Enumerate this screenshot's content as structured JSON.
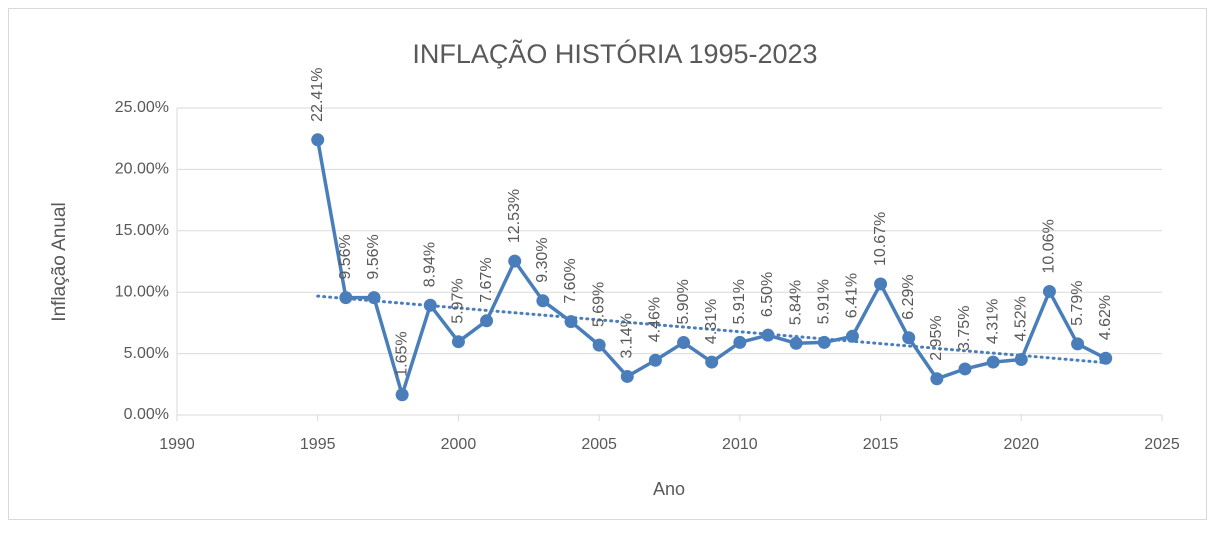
{
  "chart_data": {
    "type": "line",
    "title": "INFLAÇÃO HISTÓRIA 1995-2023",
    "x_label": "Ano",
    "y_label": "Inflação Anual",
    "x": [
      1995,
      1996,
      1997,
      1998,
      1999,
      2000,
      2001,
      2002,
      2003,
      2004,
      2005,
      2006,
      2007,
      2008,
      2009,
      2010,
      2011,
      2012,
      2013,
      2014,
      2015,
      2016,
      2017,
      2018,
      2019,
      2020,
      2021,
      2022,
      2023
    ],
    "values": [
      22.41,
      9.56,
      9.56,
      1.65,
      8.94,
      5.97,
      7.67,
      12.53,
      9.3,
      7.6,
      5.69,
      3.14,
      4.46,
      5.9,
      4.31,
      5.91,
      6.5,
      5.84,
      5.91,
      6.41,
      10.67,
      6.29,
      2.95,
      3.75,
      4.31,
      4.52,
      10.06,
      5.79,
      4.62
    ],
    "value_labels": [
      "22.41%",
      "9.56%",
      "9.56%",
      "1.65%",
      "8.94%",
      "5.97%",
      "7.67%",
      "12.53%",
      "9.30%",
      "7.60%",
      "5.69%",
      "3.14%",
      "4.46%",
      "5.90%",
      "4.31%",
      "5.91%",
      "6.50%",
      "5.84%",
      "5.91%",
      "6.41%",
      "10.67%",
      "6.29%",
      "2.95%",
      "3.75%",
      "4.31%",
      "4.52%",
      "10.06%",
      "5.79%",
      "4.62%"
    ],
    "color": "#4a7ebb",
    "trendline": "linear",
    "xlim": [
      1990,
      2025
    ],
    "xticks": [
      1990,
      1995,
      2000,
      2005,
      2010,
      2015,
      2020,
      2025
    ],
    "ylim": [
      0,
      25
    ],
    "yticks": [
      {
        "value": 0,
        "label": "0.00%"
      },
      {
        "value": 5,
        "label": "5.00%"
      },
      {
        "value": 10,
        "label": "10.00%"
      },
      {
        "value": 15,
        "label": "15.00%"
      },
      {
        "value": 20,
        "label": "20.00%"
      },
      {
        "value": 25,
        "label": "25.00%"
      }
    ],
    "grid": true
  }
}
